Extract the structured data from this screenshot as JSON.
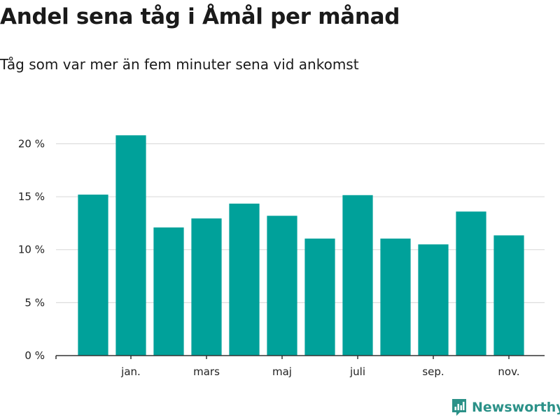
{
  "chart_data": {
    "type": "bar",
    "title": "Andel sena tåg i Åmål per månad",
    "subtitle": "Tåg som var mer än fem minuter sena vid ankomst",
    "values": [
      15.2,
      20.8,
      12.1,
      12.95,
      14.35,
      13.2,
      11.05,
      15.15,
      11.05,
      10.5,
      13.6,
      11.35
    ],
    "x_tick_labels": [
      {
        "index": 1,
        "label": "jan."
      },
      {
        "index": 3,
        "label": "mars"
      },
      {
        "index": 5,
        "label": "maj"
      },
      {
        "index": 7,
        "label": "juli"
      },
      {
        "index": 9,
        "label": "sep."
      },
      {
        "index": 11,
        "label": "nov."
      }
    ],
    "y_ticks": [
      {
        "value": 0,
        "label": "0 %"
      },
      {
        "value": 5,
        "label": "5 %"
      },
      {
        "value": 10,
        "label": "10 %"
      },
      {
        "value": 15,
        "label": "15 %"
      },
      {
        "value": 20,
        "label": "20 %"
      }
    ],
    "ylim": [
      0,
      23
    ],
    "xlabel": "",
    "ylabel": "",
    "bar_color": "#00a19a",
    "grid": true
  },
  "brand": {
    "name": "Newsworthy",
    "color": "#2b9188",
    "logo_icon": "newsworthy-logo-icon"
  }
}
